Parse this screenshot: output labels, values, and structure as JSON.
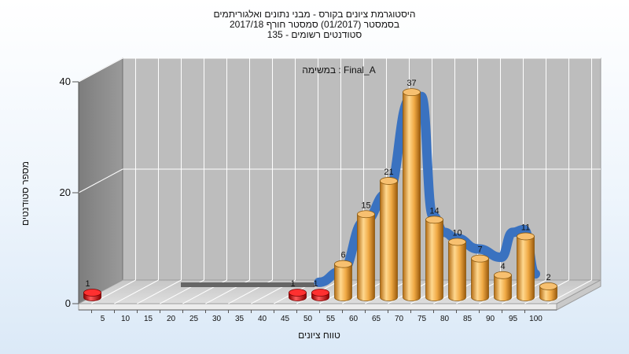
{
  "title_lines": [
    "היסטוגרמת ציונים בקורס - מבני נתונים ואלגוריתמים",
    "בסמסטר  (01/2017)  סמסטר חורף 2017/18",
    "סטודנטים רשומים - 135"
  ],
  "annotation": "במשימה : Final_A",
  "colors": {
    "bar": "#e8a94a",
    "bar_small": "#e01818",
    "curve": "#3a72c0",
    "wall": "#bdbdbd",
    "left_wall": "#8f8f8f",
    "floor": "#d3d3d3"
  },
  "chart_data": {
    "type": "bar",
    "ylabel": "מספר סטודנטים",
    "xlabel": "טווח ציונים",
    "ylim": [
      0,
      40
    ],
    "y_ticks": [
      0,
      20,
      40
    ],
    "x_ticks": [
      5,
      10,
      15,
      20,
      25,
      30,
      35,
      40,
      45,
      50,
      55,
      60,
      65,
      70,
      75,
      80,
      85,
      90,
      95,
      100
    ],
    "grid": true,
    "bars": [
      {
        "x": 5,
        "value": 1,
        "label": "1"
      },
      {
        "x": 50,
        "value": 1,
        "label": "1"
      },
      {
        "x": 55,
        "value": 1,
        "label": "1"
      },
      {
        "x": 60,
        "value": 6,
        "label": "6"
      },
      {
        "x": 65,
        "value": 15,
        "label": "15"
      },
      {
        "x": 70,
        "value": 21,
        "label": "21"
      },
      {
        "x": 75,
        "value": 37,
        "label": "37"
      },
      {
        "x": 80,
        "value": 14,
        "label": "14"
      },
      {
        "x": 85,
        "value": 10,
        "label": "10"
      },
      {
        "x": 90,
        "value": 7,
        "label": "7"
      },
      {
        "x": 95,
        "value": 4,
        "label": "4"
      },
      {
        "x": 100,
        "value": 11,
        "label": "11"
      },
      {
        "x": 105,
        "value": 2,
        "label": "2"
      }
    ],
    "curve": {
      "x": [
        55,
        60,
        65,
        70,
        75,
        77.5,
        80,
        82.5,
        85,
        90,
        95,
        97.5,
        100,
        102.5
      ],
      "y": [
        3,
        5,
        14,
        19,
        36,
        36.5,
        15,
        12,
        11,
        9,
        7.5,
        12,
        12.5,
        4.5
      ]
    }
  }
}
